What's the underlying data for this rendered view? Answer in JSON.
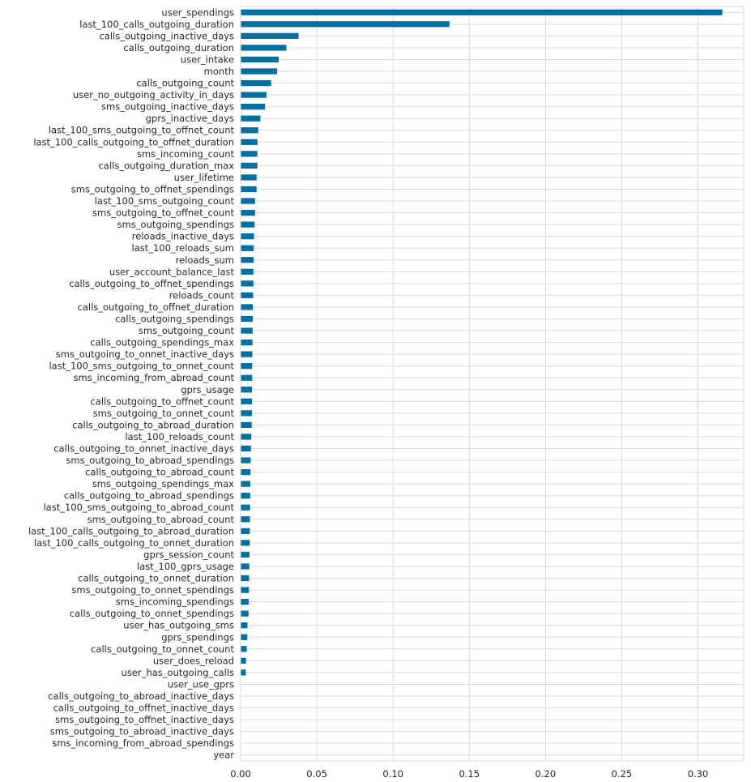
{
  "chart_data": {
    "type": "bar",
    "orientation": "horizontal",
    "title": "",
    "xlabel": "",
    "ylabel": "",
    "xlim": [
      0,
      0.33
    ],
    "x_ticks": [
      0.0,
      0.05,
      0.1,
      0.15,
      0.2,
      0.25,
      0.3
    ],
    "x_tick_labels": [
      "0.00",
      "0.05",
      "0.10",
      "0.15",
      "0.20",
      "0.25",
      "0.30"
    ],
    "grid": true,
    "bar_color": "#0570a0",
    "categories": [
      "user_spendings",
      "last_100_calls_outgoing_duration",
      "calls_outgoing_inactive_days",
      "calls_outgoing_duration",
      "user_intake",
      "month",
      "calls_outgoing_count",
      "user_no_outgoing_activity_in_days",
      "sms_outgoing_inactive_days",
      "gprs_inactive_days",
      "last_100_sms_outgoing_to_offnet_count",
      "last_100_calls_outgoing_to_offnet_duration",
      "sms_incoming_count",
      "calls_outgoing_duration_max",
      "user_lifetime",
      "sms_outgoing_to_offnet_spendings",
      "last_100_sms_outgoing_count",
      "sms_outgoing_to_offnet_count",
      "sms_outgoing_spendings",
      "reloads_inactive_days",
      "last_100_reloads_sum",
      "reloads_sum",
      "user_account_balance_last",
      "calls_outgoing_to_offnet_spendings",
      "reloads_count",
      "calls_outgoing_to_offnet_duration",
      "calls_outgoing_spendings",
      "sms_outgoing_count",
      "calls_outgoing_spendings_max",
      "sms_outgoing_to_onnet_inactive_days",
      "last_100_sms_outgoing_to_onnet_count",
      "sms_incoming_from_abroad_count",
      "gprs_usage",
      "calls_outgoing_to_offnet_count",
      "sms_outgoing_to_onnet_count",
      "calls_outgoing_to_abroad_duration",
      "last_100_reloads_count",
      "calls_outgoing_to_onnet_inactive_days",
      "sms_outgoing_to_abroad_spendings",
      "calls_outgoing_to_abroad_count",
      "sms_outgoing_spendings_max",
      "calls_outgoing_to_abroad_spendings",
      "last_100_sms_outgoing_to_abroad_count",
      "sms_outgoing_to_abroad_count",
      "last_100_calls_outgoing_to_abroad_duration",
      "last_100_calls_outgoing_to_onnet_duration",
      "gprs_session_count",
      "last_100_gprs_usage",
      "calls_outgoing_to_onnet_duration",
      "sms_outgoing_to_onnet_spendings",
      "sms_incoming_spendings",
      "calls_outgoing_to_onnet_spendings",
      "user_has_outgoing_sms",
      "gprs_spendings",
      "calls_outgoing_to_onnet_count",
      "user_does_reload",
      "user_has_outgoing_calls",
      "user_use_gprs",
      "calls_outgoing_to_abroad_inactive_days",
      "calls_outgoing_to_offnet_inactive_days",
      "sms_outgoing_to_offnet_inactive_days",
      "sms_outgoing_to_abroad_inactive_days",
      "sms_incoming_from_abroad_spendings",
      "year"
    ],
    "values": [
      0.316,
      0.137,
      0.038,
      0.03,
      0.025,
      0.024,
      0.02,
      0.017,
      0.016,
      0.013,
      0.0115,
      0.011,
      0.011,
      0.011,
      0.0105,
      0.0105,
      0.0095,
      0.0095,
      0.0092,
      0.0088,
      0.0086,
      0.0085,
      0.0084,
      0.0084,
      0.0082,
      0.0081,
      0.008,
      0.0079,
      0.0078,
      0.0077,
      0.0076,
      0.0076,
      0.0075,
      0.0075,
      0.0074,
      0.0073,
      0.007,
      0.0068,
      0.0066,
      0.0065,
      0.0064,
      0.0063,
      0.0062,
      0.0061,
      0.0061,
      0.006,
      0.0058,
      0.0057,
      0.0056,
      0.0055,
      0.0053,
      0.0052,
      0.0045,
      0.0044,
      0.004,
      0.0035,
      0.0034,
      0.0,
      0.0,
      0.0,
      0.0,
      0.0,
      0.0,
      0.0
    ]
  }
}
